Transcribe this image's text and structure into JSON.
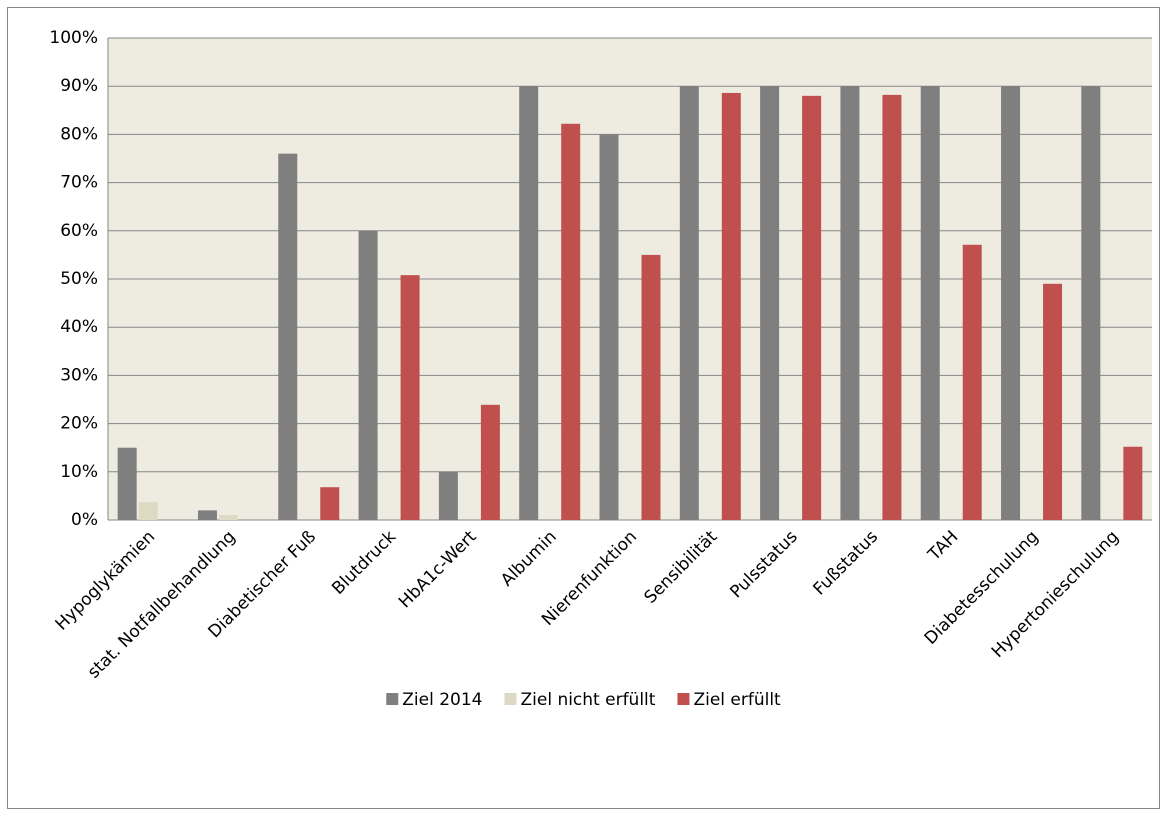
{
  "chart_data": {
    "type": "bar",
    "categories": [
      "Hypoglykämien",
      "stat. Notfallbehandlung",
      "Diabetischer Fuß",
      "Blutdruck",
      "HbA1c-Wert",
      "Albumin",
      "Nierenfunktion",
      "Sensibilität",
      "Pulsstatus",
      "Fußstatus",
      "TAH",
      "Diabetesschulung",
      "Hypertonieschulung"
    ],
    "series": [
      {
        "name": "Ziel 2014",
        "color": "#7f7f7f",
        "values": [
          15,
          2,
          76,
          60,
          10,
          90,
          80,
          90,
          90,
          90,
          90,
          90,
          90
        ]
      },
      {
        "name": "Ziel nicht erfüllt",
        "color": "#ddd9c3",
        "values": [
          3.7,
          1,
          null,
          null,
          null,
          null,
          null,
          null,
          null,
          null,
          null,
          null,
          null
        ]
      },
      {
        "name": "Ziel erfüllt",
        "color": "#c0504d",
        "values": [
          null,
          null,
          6.8,
          50.8,
          23.9,
          82.2,
          55,
          88.6,
          88,
          88.2,
          57.1,
          49,
          15.2
        ]
      }
    ],
    "ylim": [
      0,
      100
    ],
    "yticks": [
      {
        "value": 0,
        "label": "0%"
      },
      {
        "value": 10,
        "label": "10%"
      },
      {
        "value": 20,
        "label": "20%"
      },
      {
        "value": 30,
        "label": "30%"
      },
      {
        "value": 40,
        "label": "40%"
      },
      {
        "value": 50,
        "label": "50%"
      },
      {
        "value": 60,
        "label": "60%"
      },
      {
        "value": 70,
        "label": "70%"
      },
      {
        "value": 80,
        "label": "80%"
      },
      {
        "value": 90,
        "label": "90%"
      },
      {
        "value": 100,
        "label": "100%"
      }
    ],
    "grid": true,
    "legend": "bottom"
  }
}
